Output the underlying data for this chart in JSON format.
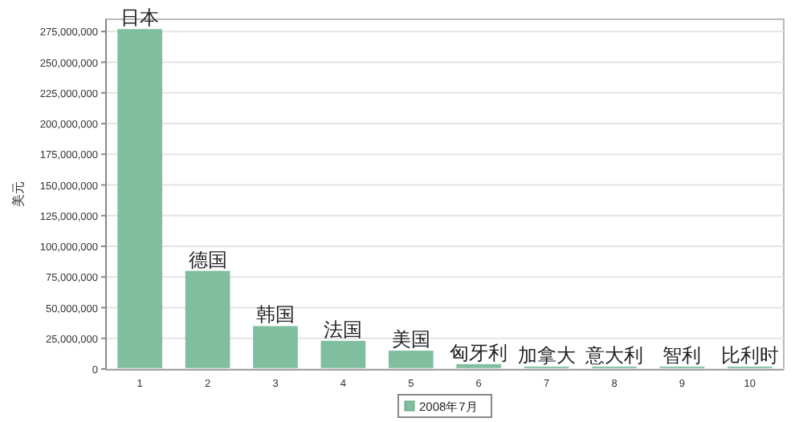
{
  "chart_data": {
    "type": "bar",
    "ylabel": "美元",
    "categories": [
      "1",
      "2",
      "3",
      "4",
      "5",
      "6",
      "7",
      "8",
      "9",
      "10"
    ],
    "series": [
      {
        "name": "2008年7月",
        "color": "#7fbf9f",
        "values": [
          277000000,
          80000000,
          35000000,
          23000000,
          15000000,
          4000000,
          2000000,
          2000000,
          2000000,
          2000000
        ]
      }
    ],
    "ylim": [
      0,
      285000000
    ],
    "yticks": [
      {
        "value": 0,
        "label": "0"
      },
      {
        "value": 25000000,
        "label": "25,000,000"
      },
      {
        "value": 50000000,
        "label": "50,000,000"
      },
      {
        "value": 75000000,
        "label": "75,000,000"
      },
      {
        "value": 100000000,
        "label": "100,000,000"
      },
      {
        "value": 125000000,
        "label": "125,000,000"
      },
      {
        "value": 150000000,
        "label": "150,000,000"
      },
      {
        "value": 175000000,
        "label": "175,000,000"
      },
      {
        "value": 200000000,
        "label": "200,000,000"
      },
      {
        "value": 225000000,
        "label": "225,000,000"
      },
      {
        "value": 250000000,
        "label": "250,000,000"
      },
      {
        "value": 275000000,
        "label": "275,000,000"
      }
    ],
    "grid": "y",
    "legend": "bottom",
    "annotations": [
      {
        "text": "日本",
        "x": "1",
        "y": 277000000
      },
      {
        "text": "德国",
        "x": "2",
        "y": 80000000
      },
      {
        "text": "韩国",
        "x": "3",
        "y": 35000000
      },
      {
        "text": "法国",
        "x": "4",
        "y": 23000000
      },
      {
        "text": "美国",
        "x": "5",
        "y": 15000000
      },
      {
        "text": "匈牙利",
        "x": "6",
        "y": 4000000
      },
      {
        "text": "加拿大",
        "x": "7",
        "y": 2000000
      },
      {
        "text": "意大利",
        "x": "8",
        "y": 2000000
      },
      {
        "text": "智利",
        "x": "9",
        "y": 2000000
      },
      {
        "text": "比利时",
        "x": "10",
        "y": 2000000
      }
    ]
  }
}
